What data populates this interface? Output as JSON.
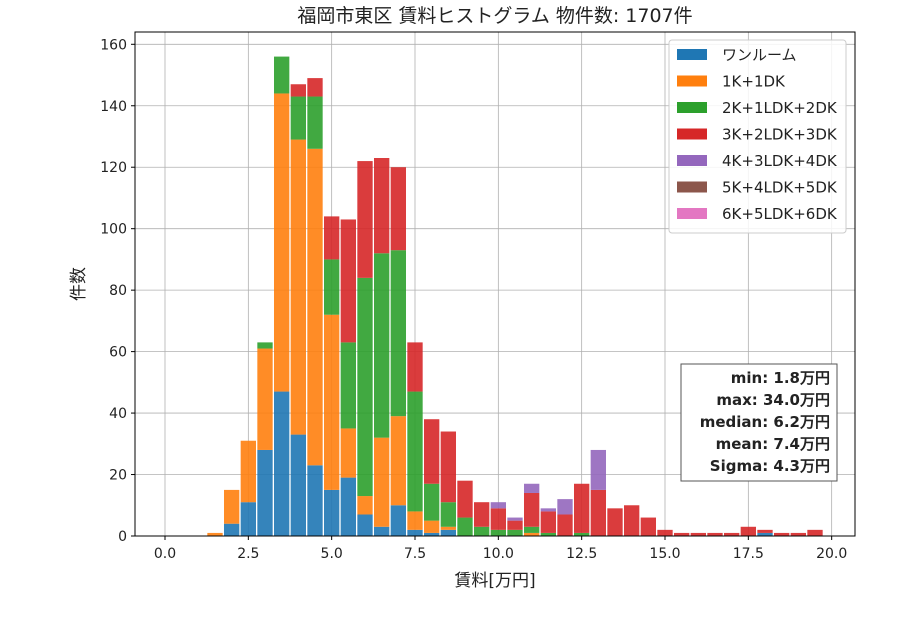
{
  "chart_data": {
    "type": "bar",
    "stacked": true,
    "title": "福岡市東区 賃料ヒストグラム 物件数: 1707件",
    "xlabel": "賃料[万円]",
    "ylabel": "件数",
    "xlim": [
      -0.9,
      20.7
    ],
    "ylim": [
      0,
      164
    ],
    "xticks": [
      "0.0",
      "2.5",
      "5.0",
      "7.5",
      "10.0",
      "12.5",
      "15.0",
      "17.5",
      "20.0"
    ],
    "yticks": [
      "0",
      "20",
      "40",
      "60",
      "80",
      "100",
      "120",
      "140",
      "160"
    ],
    "grid": true,
    "legend_position": "top-right",
    "bin_width": 0.5,
    "x": [
      0.0,
      0.5,
      1.0,
      1.5,
      2.0,
      2.5,
      3.0,
      3.5,
      4.0,
      4.5,
      5.0,
      5.5,
      6.0,
      6.5,
      7.0,
      7.5,
      8.0,
      8.5,
      9.0,
      9.5,
      10.0,
      10.5,
      11.0,
      11.5,
      12.0,
      12.5,
      13.0,
      13.5,
      14.0,
      14.5,
      15.0,
      15.5,
      16.0,
      16.5,
      17.0,
      17.5,
      18.0,
      18.5,
      19.0,
      19.5
    ],
    "series": [
      {
        "name": "ワンルーム",
        "color": "#1f77b4",
        "values": [
          0,
          0,
          0,
          0,
          4,
          11,
          28,
          47,
          33,
          23,
          15,
          19,
          7,
          3,
          10,
          2,
          1,
          2,
          0,
          0,
          0,
          0,
          0,
          0,
          0,
          0,
          0,
          0,
          0,
          0,
          0,
          0,
          0,
          0,
          0,
          0,
          1,
          0,
          0,
          0
        ]
      },
      {
        "name": "1K+1DK",
        "color": "#ff7f0e",
        "values": [
          0,
          0,
          0,
          1,
          11,
          20,
          33,
          97,
          96,
          103,
          57,
          16,
          6,
          29,
          29,
          6,
          4,
          1,
          0,
          0,
          0,
          0,
          1,
          0,
          0,
          0,
          0,
          0,
          0,
          0,
          0,
          0,
          0,
          0,
          0,
          0,
          0,
          0,
          0,
          0
        ]
      },
      {
        "name": "2K+1LDK+2DK",
        "color": "#2ca02c",
        "values": [
          0,
          0,
          0,
          0,
          0,
          0,
          2,
          12,
          14,
          17,
          18,
          28,
          71,
          60,
          54,
          39,
          12,
          8,
          6,
          3,
          2,
          2,
          2,
          1,
          0,
          1,
          0,
          0,
          0,
          0,
          0,
          0,
          0,
          0,
          0,
          0,
          0,
          0,
          0,
          0
        ]
      },
      {
        "name": "3K+2LDK+3DK",
        "color": "#d62728",
        "values": [
          0,
          0,
          0,
          0,
          0,
          0,
          0,
          0,
          4,
          6,
          14,
          40,
          38,
          31,
          27,
          16,
          21,
          23,
          12,
          8,
          7,
          3,
          11,
          7,
          7,
          16,
          15,
          9,
          10,
          6,
          2,
          1,
          1,
          1,
          1,
          3,
          1,
          1,
          1,
          2
        ]
      },
      {
        "name": "4K+3LDK+4DK",
        "color": "#9467bd",
        "values": [
          0,
          0,
          0,
          0,
          0,
          0,
          0,
          0,
          0,
          0,
          0,
          0,
          0,
          0,
          0,
          0,
          0,
          0,
          0,
          0,
          2,
          1,
          3,
          1,
          5,
          0,
          13,
          0,
          0,
          0,
          0,
          0,
          0,
          0,
          0,
          0,
          0,
          0,
          0,
          0
        ]
      },
      {
        "name": "5K+4LDK+5DK",
        "color": "#8c564b",
        "values": [
          0,
          0,
          0,
          0,
          0,
          0,
          0,
          0,
          0,
          0,
          0,
          0,
          0,
          0,
          0,
          0,
          0,
          0,
          0,
          0,
          0,
          0,
          0,
          0,
          0,
          0,
          0,
          0,
          0,
          0,
          0,
          0,
          0,
          0,
          0,
          0,
          0,
          0,
          0,
          0
        ]
      },
      {
        "name": "6K+5LDK+6DK",
        "color": "#e377c2",
        "values": [
          0,
          0,
          0,
          0,
          0,
          0,
          0,
          0,
          0,
          0,
          0,
          0,
          0,
          0,
          0,
          0,
          0,
          0,
          0,
          0,
          0,
          0,
          0,
          0,
          0,
          0,
          0,
          0,
          0,
          0,
          0,
          0,
          0,
          0,
          0,
          0,
          0,
          0,
          0,
          0
        ]
      }
    ],
    "stats": {
      "min": "min: 1.8万円",
      "max": "max: 34.0万円",
      "median": "median: 6.2万円",
      "mean": "mean: 7.4万円",
      "sigma": "Sigma: 4.3万円"
    }
  }
}
